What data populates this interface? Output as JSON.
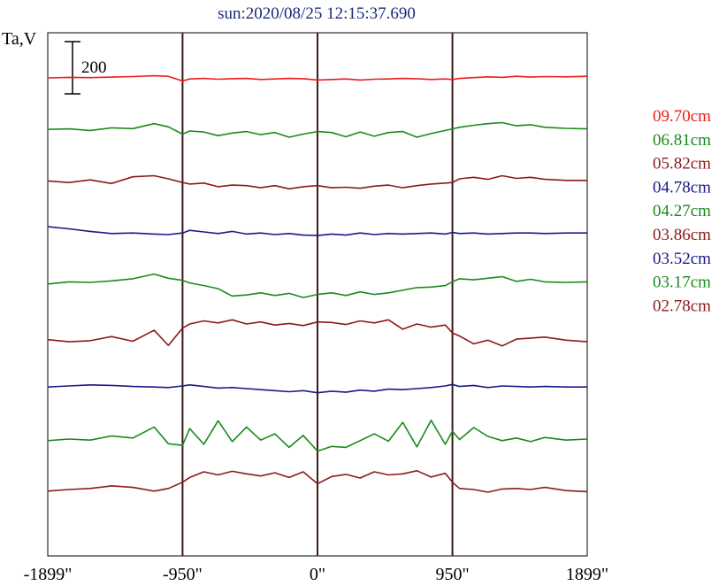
{
  "chart_data": {
    "type": "line",
    "title": "sun:2020/08/25 12:15:37.690",
    "ylabel": "Ta,V",
    "scale_bar_label": "200",
    "scale_bar_value": 200,
    "xlim": [
      -1899,
      1899
    ],
    "x_ticks": [
      {
        "value": -1899,
        "label": "-1899\""
      },
      {
        "value": -950,
        "label": "-950\""
      },
      {
        "value": 0,
        "label": "0\""
      },
      {
        "value": 950,
        "label": "950\""
      },
      {
        "value": 1899,
        "label": "1899\""
      }
    ],
    "vertical_lines": [
      -950,
      0,
      950
    ],
    "series": [
      {
        "name": "09.70cm",
        "color": "#ee1c1c",
        "baseline": 0,
        "x": [
          -1899,
          -1750,
          -1600,
          -1450,
          -1300,
          -1150,
          -1050,
          -950,
          -900,
          -800,
          -700,
          -600,
          -500,
          -400,
          -300,
          -200,
          -100,
          0,
          100,
          200,
          300,
          400,
          500,
          600,
          700,
          800,
          900,
          950,
          1000,
          1100,
          1200,
          1300,
          1400,
          1500,
          1600,
          1750,
          1899
        ],
        "y": [
          0,
          2,
          1,
          3,
          5,
          8,
          6,
          -12,
          -4,
          -2,
          -5,
          -3,
          -2,
          -6,
          -4,
          -2,
          -3,
          -8,
          -6,
          -4,
          -8,
          -5,
          -4,
          -2,
          -3,
          -6,
          -4,
          -6,
          -2,
          1,
          4,
          2,
          6,
          3,
          5,
          4,
          6
        ]
      },
      {
        "name": "06.81cm",
        "color": "#1a8a1a",
        "baseline": -200,
        "x": [
          -1899,
          -1750,
          -1600,
          -1450,
          -1300,
          -1150,
          -1050,
          -950,
          -900,
          -800,
          -700,
          -600,
          -500,
          -400,
          -300,
          -200,
          -100,
          0,
          100,
          200,
          300,
          400,
          500,
          600,
          700,
          800,
          900,
          950,
          1000,
          1100,
          1200,
          1300,
          1400,
          1500,
          1600,
          1750,
          1899
        ],
        "y": [
          0,
          2,
          -4,
          6,
          3,
          22,
          10,
          -18,
          -6,
          -10,
          -24,
          -14,
          -8,
          -20,
          -12,
          -30,
          -18,
          -8,
          -12,
          -28,
          -10,
          -26,
          -12,
          -8,
          -30,
          -16,
          -4,
          2,
          8,
          16,
          22,
          26,
          14,
          18,
          8,
          4,
          2
        ]
      },
      {
        "name": "05.82cm",
        "color": "#8b1a1a",
        "baseline": -400,
        "x": [
          -1899,
          -1750,
          -1600,
          -1450,
          -1300,
          -1150,
          -1050,
          -950,
          -900,
          -800,
          -700,
          -600,
          -500,
          -400,
          -300,
          -200,
          -100,
          0,
          100,
          200,
          300,
          400,
          500,
          600,
          700,
          800,
          900,
          950,
          1000,
          1100,
          1200,
          1300,
          1400,
          1500,
          1600,
          1750,
          1899
        ],
        "y": [
          0,
          -6,
          4,
          -10,
          16,
          20,
          8,
          -6,
          -12,
          -8,
          -22,
          -16,
          -18,
          -26,
          -18,
          -30,
          -22,
          -18,
          -26,
          -24,
          -28,
          -20,
          -16,
          -26,
          -18,
          -12,
          -8,
          -6,
          8,
          14,
          6,
          20,
          10,
          14,
          6,
          2,
          2
        ]
      },
      {
        "name": "04.78cm",
        "color": "#1a1a8a",
        "baseline": -600,
        "x": [
          -1899,
          -1750,
          -1600,
          -1450,
          -1300,
          -1150,
          -1050,
          -950,
          -900,
          -800,
          -700,
          -600,
          -500,
          -400,
          -300,
          -200,
          -100,
          0,
          100,
          200,
          300,
          400,
          500,
          600,
          700,
          800,
          900,
          950,
          1000,
          1100,
          1200,
          1300,
          1400,
          1500,
          1600,
          1750,
          1899
        ],
        "y": [
          22,
          14,
          4,
          -4,
          -2,
          -6,
          -8,
          -2,
          8,
          2,
          -4,
          4,
          -6,
          -2,
          -8,
          -4,
          -10,
          -12,
          -6,
          -10,
          -2,
          -8,
          -4,
          -6,
          -4,
          -2,
          -6,
          0,
          -4,
          -2,
          -6,
          -4,
          -2,
          -2,
          -4,
          -2,
          -2
        ]
      },
      {
        "name": "04.27cm",
        "color": "#1a8a1a",
        "baseline": -800,
        "x": [
          -1899,
          -1750,
          -1600,
          -1450,
          -1300,
          -1150,
          -1050,
          -950,
          -900,
          -800,
          -700,
          -600,
          -500,
          -400,
          -300,
          -200,
          -100,
          0,
          100,
          200,
          300,
          400,
          500,
          600,
          700,
          800,
          900,
          950,
          1000,
          1100,
          1200,
          1300,
          1400,
          1500,
          1600,
          1750,
          1899
        ],
        "y": [
          0,
          8,
          6,
          12,
          20,
          38,
          22,
          14,
          4,
          -6,
          -18,
          -46,
          -42,
          -34,
          -44,
          -36,
          -52,
          -40,
          -34,
          -44,
          -30,
          -40,
          -34,
          -24,
          -14,
          -12,
          -6,
          8,
          20,
          16,
          22,
          28,
          10,
          18,
          8,
          6,
          8
        ]
      },
      {
        "name": "03.86cm",
        "color": "#8b1a1a",
        "baseline": -1000,
        "x": [
          -1899,
          -1750,
          -1600,
          -1450,
          -1300,
          -1150,
          -1050,
          -950,
          -900,
          -800,
          -700,
          -600,
          -500,
          -400,
          -300,
          -200,
          -100,
          0,
          100,
          200,
          300,
          400,
          500,
          600,
          700,
          800,
          900,
          950,
          1000,
          1100,
          1200,
          1300,
          1400,
          1500,
          1600,
          1750,
          1899
        ],
        "y": [
          -16,
          -24,
          -20,
          -4,
          -22,
          20,
          -38,
          28,
          44,
          56,
          48,
          60,
          44,
          52,
          40,
          46,
          38,
          52,
          50,
          42,
          56,
          48,
          60,
          24,
          44,
          32,
          40,
          10,
          -2,
          -32,
          -18,
          -40,
          -14,
          -10,
          -6,
          -18,
          -24
        ]
      },
      {
        "name": "03.52cm",
        "color": "#1a1a8a",
        "baseline": -1200,
        "x": [
          -1899,
          -1750,
          -1600,
          -1450,
          -1300,
          -1150,
          -1050,
          -950,
          -900,
          -800,
          -700,
          -600,
          -500,
          -400,
          -300,
          -200,
          -100,
          0,
          100,
          200,
          300,
          400,
          500,
          600,
          700,
          800,
          900,
          950,
          1000,
          1100,
          1200,
          1300,
          1400,
          1500,
          1600,
          1750,
          1899
        ],
        "y": [
          0,
          4,
          8,
          6,
          2,
          0,
          -2,
          4,
          8,
          2,
          -4,
          -2,
          -6,
          -10,
          -14,
          -18,
          -14,
          -22,
          -16,
          -20,
          -12,
          -16,
          -8,
          -10,
          -6,
          -2,
          4,
          10,
          2,
          6,
          -2,
          4,
          2,
          0,
          2,
          0,
          0
        ]
      },
      {
        "name": "03.17cm",
        "color": "#1a8a1a",
        "baseline": -1400,
        "x": [
          -1899,
          -1750,
          -1600,
          -1450,
          -1300,
          -1150,
          -1050,
          -950,
          -900,
          -800,
          -700,
          -600,
          -500,
          -400,
          -300,
          -200,
          -100,
          0,
          100,
          200,
          300,
          400,
          500,
          600,
          700,
          800,
          900,
          950,
          1000,
          1100,
          1200,
          1300,
          1400,
          1500,
          1600,
          1750,
          1899
        ],
        "y": [
          -8,
          -2,
          -6,
          10,
          2,
          44,
          -20,
          -26,
          38,
          -22,
          68,
          -12,
          44,
          -6,
          18,
          -34,
          12,
          -48,
          -30,
          -34,
          -8,
          18,
          -10,
          62,
          -32,
          70,
          -22,
          28,
          -4,
          42,
          8,
          -8,
          2,
          -12,
          4,
          -6,
          -2
        ]
      },
      {
        "name": "02.78cm",
        "color": "#8b1a1a",
        "baseline": -1600,
        "x": [
          -1899,
          -1750,
          -1600,
          -1450,
          -1300,
          -1150,
          -1050,
          -950,
          -900,
          -800,
          -700,
          -600,
          -500,
          -400,
          -300,
          -200,
          -100,
          0,
          100,
          200,
          300,
          400,
          500,
          600,
          700,
          800,
          900,
          950,
          1000,
          1100,
          1200,
          1300,
          1400,
          1500,
          1600,
          1750,
          1899
        ],
        "y": [
          -4,
          2,
          6,
          16,
          10,
          -4,
          6,
          30,
          48,
          70,
          58,
          72,
          62,
          54,
          66,
          48,
          70,
          24,
          52,
          60,
          46,
          70,
          58,
          62,
          74,
          50,
          64,
          30,
          6,
          2,
          -8,
          4,
          6,
          2,
          10,
          -2,
          -6
        ]
      }
    ]
  }
}
